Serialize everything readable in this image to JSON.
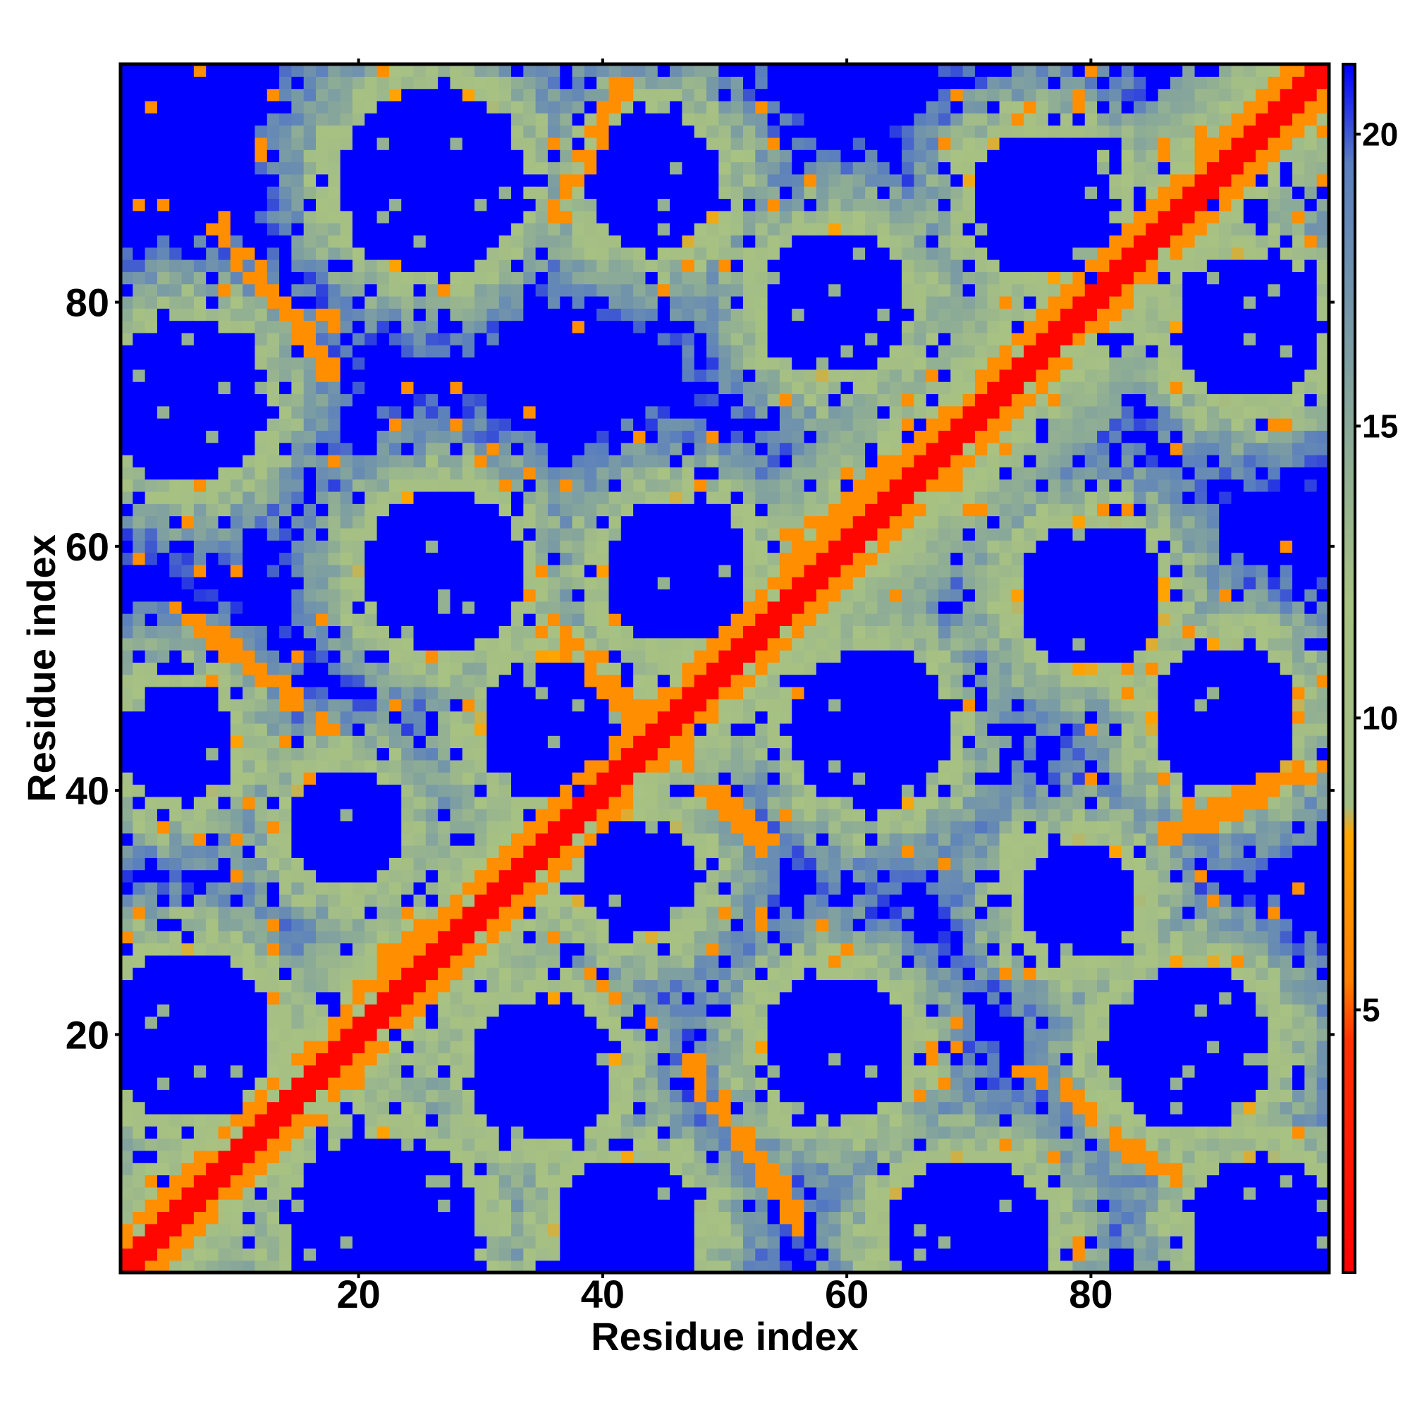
{
  "chart_data": {
    "type": "heatmap",
    "title": "",
    "xlabel": "Residue index",
    "ylabel": "Residue index",
    "xlim": [
      0.5,
      99.5
    ],
    "ylim": [
      0.5,
      99.5
    ],
    "x_ticks": [
      20,
      40,
      60,
      80
    ],
    "y_ticks": [
      20,
      40,
      60,
      80
    ],
    "colorbar": {
      "ticks": [
        5,
        10,
        15,
        20
      ],
      "range": [
        0.5,
        21.2
      ],
      "stops": [
        {
          "value": 0.5,
          "color": "#ff0000"
        },
        {
          "value": 4.5,
          "color": "#ff3300"
        },
        {
          "value": 5.5,
          "color": "#ff7f00"
        },
        {
          "value": 8.0,
          "color": "#ffa500"
        },
        {
          "value": 8.5,
          "color": "#a2bc85"
        },
        {
          "value": 12.0,
          "color": "#a8c283"
        },
        {
          "value": 16.0,
          "color": "#7fa0a0"
        },
        {
          "value": 19.5,
          "color": "#5a7fbe"
        },
        {
          "value": 21.2,
          "color": "#0000ff"
        }
      ],
      "background_color": "#0000ff",
      "background_threshold": 20.5
    },
    "n_residues": 99,
    "diagonal_band": {
      "center": 0,
      "core_halfwidth": 1,
      "orange_halfwidth": 3
    },
    "cross_diagonal": {
      "center_sum": 90
    },
    "orange_segments": [
      {
        "x": [
          8,
          18
        ],
        "y": [
          87,
          74
        ]
      },
      {
        "x": [
          5,
          18
        ],
        "y": [
          55,
          45
        ]
      },
      {
        "x": [
          35,
          43
        ],
        "y": [
          54,
          46
        ]
      },
      {
        "x": [
          46,
          54
        ],
        "y": [
          43,
          35
        ]
      },
      {
        "x": [
          47,
          56
        ],
        "y": [
          18,
          5
        ]
      },
      {
        "x": [
          74,
          87
        ],
        "y": [
          18,
          8
        ]
      },
      {
        "x": [
          86,
          98
        ],
        "y": [
          36,
          42
        ]
      },
      {
        "x": [
          36,
          42
        ],
        "y": [
          87,
          98
        ]
      },
      {
        "x": [
          22,
          34
        ],
        "y": [
          26,
          34
        ]
      },
      {
        "x": [
          56,
          68
        ],
        "y": [
          60,
          70
        ]
      }
    ],
    "blue_holes": [
      {
        "x": 26,
        "y": 90,
        "r": 7.5
      },
      {
        "x": 44,
        "y": 90,
        "r": 5.5
      },
      {
        "x": 59,
        "y": 80,
        "r": 6
      },
      {
        "x": 76,
        "y": 88,
        "r": 6
      },
      {
        "x": 93,
        "y": 78,
        "r": 6
      },
      {
        "x": 27,
        "y": 58,
        "r": 6.5
      },
      {
        "x": 46,
        "y": 58,
        "r": 6
      },
      {
        "x": 80,
        "y": 56,
        "r": 6
      },
      {
        "x": 6,
        "y": 72,
        "r": 6.5
      },
      {
        "x": 5,
        "y": 44,
        "r": 5
      },
      {
        "x": 36,
        "y": 45,
        "r": 6
      },
      {
        "x": 62,
        "y": 45,
        "r": 6.5
      },
      {
        "x": 91,
        "y": 46,
        "r": 6
      },
      {
        "x": 19,
        "y": 37,
        "r": 4.5
      },
      {
        "x": 43,
        "y": 33,
        "r": 5
      },
      {
        "x": 79,
        "y": 31,
        "r": 5
      },
      {
        "x": 6,
        "y": 20,
        "r": 7
      },
      {
        "x": 35,
        "y": 17,
        "r": 6
      },
      {
        "x": 59,
        "y": 19,
        "r": 6
      },
      {
        "x": 88,
        "y": 19,
        "r": 7
      },
      {
        "x": 22,
        "y": 4,
        "r": 8
      },
      {
        "x": 42,
        "y": 4,
        "r": 6
      },
      {
        "x": 70,
        "y": 3,
        "r": 7
      },
      {
        "x": 94,
        "y": 4,
        "r": 6
      }
    ]
  }
}
